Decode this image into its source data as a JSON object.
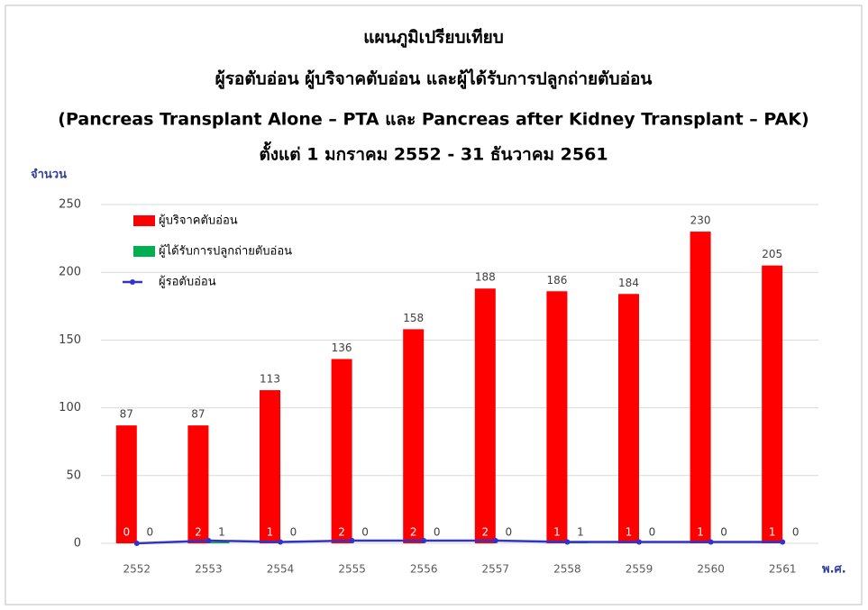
{
  "chart_data": {
    "type": "bar",
    "title": [
      "แผนภูมิเปรียบเทียบ",
      "ผู้รอตับอ่อน ผู้บริจาคตับอ่อน และผู้ได้รับการปลูกถ่ายตับอ่อน",
      "(Pancreas Transplant Alone – PTA และ Pancreas after Kidney Transplant – PAK)",
      "ตั้งแต่ 1 มกราคม 2552 - 31 ธันวาคม 2561"
    ],
    "y_label": "จำนวน",
    "x_label": "พ.ศ.",
    "categories": [
      "2552",
      "2553",
      "2554",
      "2555",
      "2556",
      "2557",
      "2558",
      "2559",
      "2560",
      "2561"
    ],
    "series": [
      {
        "name": "ผู้บริจาคตับอ่อน",
        "type": "bar",
        "color": "#ff0000",
        "values": [
          87,
          87,
          113,
          136,
          158,
          188,
          186,
          184,
          230,
          205
        ]
      },
      {
        "name": "ผู้ได้รับการปลูกถ่ายตับอ่อน",
        "type": "bar",
        "color": "#00b050",
        "values": [
          0,
          1,
          0,
          0,
          0,
          0,
          1,
          0,
          0,
          0
        ]
      },
      {
        "name": "ผู้รอตับอ่อน",
        "type": "line",
        "color": "#3333cc",
        "values": [
          0,
          2,
          1,
          2,
          2,
          2,
          1,
          1,
          1,
          1
        ]
      }
    ],
    "ylim": [
      0,
      250
    ],
    "yticks": [
      0,
      50,
      100,
      150,
      200,
      250
    ],
    "grid": true,
    "legend": "top-left"
  }
}
